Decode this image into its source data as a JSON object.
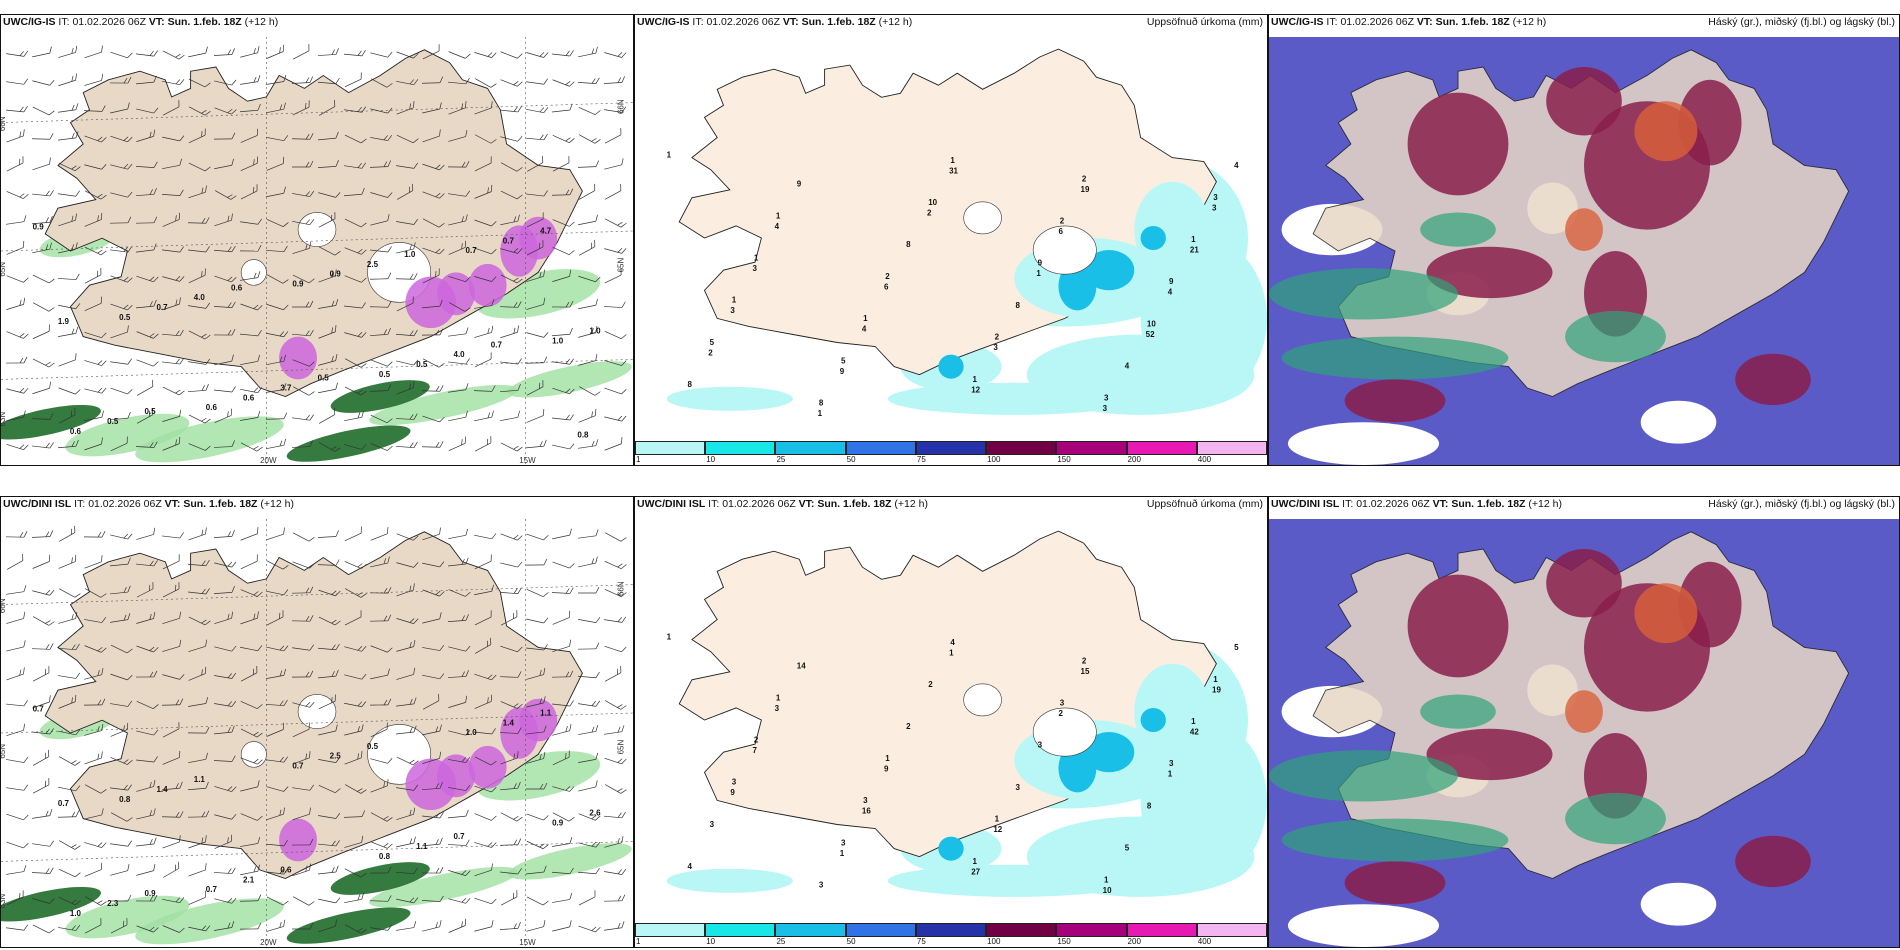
{
  "rows": [
    {
      "model": "UWC/IG-IS",
      "panels": [
        {
          "model_label": "UWC/IG-IS",
          "it_prefix": "IT:",
          "it_value": "01.02.2026 06Z",
          "vt_prefix": "VT:",
          "vt_value": "Sun. 1.feb. 18Z",
          "lead": "(+12 h)",
          "title_right": "",
          "grid_labels": [
            "66N",
            "65N",
            "20W",
            "15W",
            "63N",
            "66N",
            "65N"
          ],
          "values": [
            "0.9",
            "0.5",
            "0.6",
            "0.9",
            "0.5",
            "0.7",
            "1.0",
            "0.6",
            "0.7",
            "0.6",
            "0.9",
            "0.5",
            "0.7",
            "1.0",
            "0.5",
            "4.0",
            "3.7",
            "2.5",
            "4.0",
            "4.7",
            "1.9",
            "0.5",
            "0.6",
            "0.5",
            "1.0",
            "0.7",
            "0.8"
          ]
        },
        {
          "model_label": "UWC/IG-IS",
          "it_prefix": "IT:",
          "it_value": "01.02.2026 06Z",
          "vt_prefix": "VT:",
          "vt_value": "Sun. 1.feb. 18Z",
          "lead": "(+12 h)",
          "title_right": "Uppsöfnuð úrkoma (mm)",
          "values": [
            "1",
            "1",
            "2",
            "2",
            "3",
            "3",
            "1",
            "1",
            "1",
            "2",
            "1",
            "1",
            "5",
            "1",
            "2",
            "9",
            "5",
            "8",
            "10",
            "9",
            "10",
            "8",
            "9",
            "8",
            "8",
            "4",
            "4",
            "4",
            "6",
            "3",
            "3",
            "3",
            "3",
            "4",
            "12",
            "19",
            "21",
            "3",
            "9",
            "31",
            "6",
            "4",
            "2",
            "1",
            "2",
            "1",
            "52"
          ],
          "colorbar_labels": [
            "1",
            "10",
            "25",
            "50",
            "75",
            "100",
            "150",
            "200",
            "400"
          ],
          "colorbar_colors": [
            "#b9f7f7",
            "#19e6e6",
            "#19bfe6",
            "#2f73e6",
            "#2633a8",
            "#720045",
            "#a6007a",
            "#e619b3",
            "#f5b5f0"
          ]
        },
        {
          "model_label": "UWC/IG-IS",
          "it_prefix": "IT:",
          "it_value": "01.02.2026 06Z",
          "vt_prefix": "VT:",
          "vt_value": "Sun. 1.feb. 18Z",
          "lead": "(+12 h)",
          "title_right": "Háský (gr.), miðský (fj.bl.) og lágský (bl.)"
        }
      ]
    },
    {
      "model": "UWC/DINI ISL",
      "panels": [
        {
          "model_label": "UWC/DINI ISL",
          "it_prefix": "IT:",
          "it_value": "01.02.2026 06Z",
          "vt_prefix": "VT:",
          "vt_value": "Sun. 1.feb. 18Z",
          "lead": "(+12 h)",
          "title_right": "",
          "grid_labels": [
            "66N",
            "65N",
            "20W",
            "15W",
            "63N",
            "66N",
            "65N"
          ],
          "values": [
            "0.7",
            "0.8",
            "0.7",
            "0.7",
            "0.8",
            "1.0",
            "0.9",
            "1.0",
            "1.4",
            "2.1",
            "2.5",
            "1.1",
            "1.4",
            "2.6",
            "2.3",
            "1.1",
            "0.6",
            "0.5",
            "0.7",
            "1.1",
            "0.7",
            "0.9"
          ]
        },
        {
          "model_label": "UWC/DINI ISL",
          "it_prefix": "IT:",
          "it_value": "01.02.2026 06Z",
          "vt_prefix": "VT:",
          "vt_value": "Sun. 1.feb. 18Z",
          "lead": "(+12 h)",
          "title_right": "Uppsöfnuð úrkoma (mm)",
          "values": [
            "1",
            "1",
            "1",
            "1",
            "1",
            "1",
            "2",
            "3",
            "1",
            "2",
            "1",
            "3",
            "3",
            "4",
            "3",
            "3",
            "3",
            "3",
            "2",
            "3",
            "8",
            "4",
            "14",
            "2",
            "3",
            "5",
            "5",
            "3",
            "9",
            "12",
            "10",
            "19",
            "7",
            "16",
            "27",
            "15",
            "42",
            "9",
            "1",
            "1",
            "2",
            "1"
          ],
          "colorbar_labels": [
            "1",
            "10",
            "25",
            "50",
            "75",
            "100",
            "150",
            "200",
            "400"
          ],
          "colorbar_colors": [
            "#b9f7f7",
            "#19e6e6",
            "#19bfe6",
            "#2f73e6",
            "#2633a8",
            "#720045",
            "#a6007a",
            "#e619b3",
            "#f5b5f0"
          ]
        },
        {
          "model_label": "UWC/DINI ISL",
          "it_prefix": "IT:",
          "it_value": "01.02.2026 06Z",
          "vt_prefix": "VT:",
          "vt_value": "Sun. 1.feb. 18Z",
          "lead": "(+12 h)",
          "title_right": "Háský (gr.), miðský (fj.bl.) og lágský (bl.)"
        }
      ]
    }
  ]
}
